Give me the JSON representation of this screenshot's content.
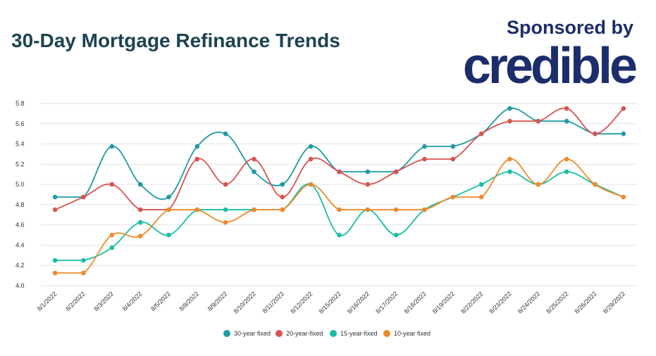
{
  "title": "30-Day Mortgage Refinance Trends",
  "sponsor": {
    "label": "Sponsored by",
    "logo_text": "credible",
    "logo_color": "#1c2d6b"
  },
  "colors": {
    "title": "#1d4350",
    "grid": "#e3e3e3"
  },
  "chart_data": {
    "type": "line",
    "title": "30-Day Mortgage Refinance Trends",
    "xlabel": "",
    "ylabel": "",
    "ylim": [
      4.0,
      5.8
    ],
    "yticks": [
      "4.0",
      "4.2",
      "4.4",
      "4.6",
      "4.8",
      "5.0",
      "5.2",
      "5.4",
      "5.6",
      "5.8"
    ],
    "grid": true,
    "legend_position": "bottom",
    "categories": [
      "8/1/2022",
      "8/2/2022",
      "8/3/2022",
      "8/4/2022",
      "8/5/2022",
      "8/8/2022",
      "8/9/2022",
      "8/10/2022",
      "8/11/2022",
      "8/12/2022",
      "8/15/2022",
      "8/16/2022",
      "8/17/2022",
      "8/18/2022",
      "8/19/2022",
      "8/22/2022",
      "8/23/2022",
      "8/24/2022",
      "8/25/2022",
      "8/26/2022",
      "8/29/2022"
    ],
    "series": [
      {
        "name": "30-year fixed",
        "color": "#1f9aa5",
        "values": [
          4.875,
          4.875,
          5.375,
          5.0,
          4.875,
          5.375,
          5.5,
          5.125,
          5.0,
          5.375,
          5.125,
          5.125,
          5.125,
          5.375,
          5.375,
          5.5,
          5.75,
          5.625,
          5.625,
          5.5,
          5.5
        ]
      },
      {
        "name": "20-year-fixed",
        "color": "#d9534f",
        "values": [
          4.75,
          4.875,
          5.0,
          4.75,
          4.75,
          5.25,
          5.0,
          5.25,
          4.875,
          5.25,
          5.125,
          5.0,
          5.125,
          5.25,
          5.25,
          5.5,
          5.625,
          5.625,
          5.75,
          5.5,
          5.75
        ]
      },
      {
        "name": "15-year-fixed",
        "color": "#17bfa3",
        "values": [
          4.25,
          4.25,
          4.375,
          4.625,
          4.5,
          4.75,
          4.75,
          4.75,
          4.75,
          5.0,
          4.5,
          4.75,
          4.5,
          4.75,
          4.875,
          5.0,
          5.125,
          5.0,
          5.125,
          5.0,
          4.875
        ]
      },
      {
        "name": "10-year fixed",
        "color": "#ef8a2b",
        "values": [
          4.125,
          4.125,
          4.5,
          4.49,
          4.75,
          4.75,
          4.625,
          4.75,
          4.75,
          5.0,
          4.75,
          4.75,
          4.75,
          4.75,
          4.875,
          4.875,
          5.25,
          5.0,
          5.25,
          5.0,
          4.875
        ]
      }
    ]
  }
}
